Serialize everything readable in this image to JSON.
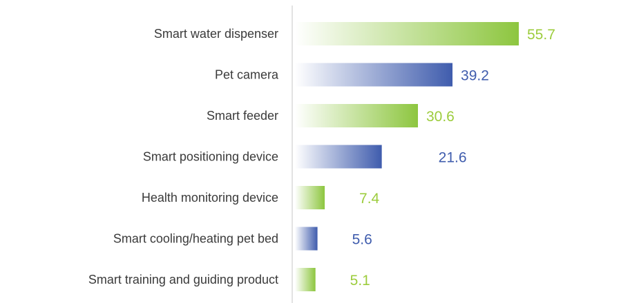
{
  "colors": {
    "green": "#8dc63f",
    "blue": "#3f5cad",
    "green_label": "#9ccc3c",
    "blue_label": "#3f5cad",
    "axis": "#d9d9d9",
    "text": "#3a3a3a"
  },
  "chart_data": {
    "type": "bar",
    "orientation": "horizontal",
    "title": "",
    "xlabel": "",
    "ylabel": "",
    "grid": false,
    "categories": [
      "Smart water dispenser",
      "Pet camera",
      "Smart feeder",
      "Smart positioning device",
      "Health monitoring device",
      "Smart cooling/heating pet bed",
      "Smart training and guiding product"
    ],
    "values": [
      55.7,
      39.2,
      30.6,
      21.6,
      7.4,
      5.6,
      5.1
    ],
    "value_labels": [
      "55.7",
      "39.2",
      "30.6",
      "21.6",
      "7.4",
      "5.6",
      "5.1"
    ],
    "bar_colors": [
      "green",
      "blue",
      "green",
      "blue",
      "green",
      "blue",
      "green"
    ],
    "xlim": [
      0,
      55.7
    ]
  }
}
